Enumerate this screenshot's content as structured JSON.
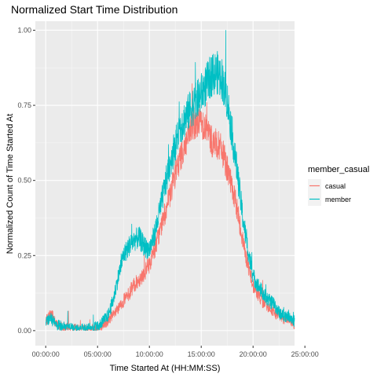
{
  "chart_data": {
    "type": "line",
    "title": "Normalized Start Time Distribution",
    "xlabel": "Time Started At (HH:MM:SS)",
    "ylabel": "Normalized Count of Time Started At",
    "xlim": [
      -1,
      24
    ],
    "ylim": [
      -0.05,
      1.03
    ],
    "x_ticks": [
      0,
      5,
      10,
      15,
      20,
      25
    ],
    "x_tick_labels": [
      "00:00:00",
      "05:00:00",
      "10:00:00",
      "15:00:00",
      "20:00:00",
      "25:00:00"
    ],
    "y_ticks": [
      0,
      0.25,
      0.5,
      0.75,
      1.0
    ],
    "y_tick_labels": [
      "0.00",
      "0.25",
      "0.50",
      "0.75",
      "1.00"
    ],
    "grid": true,
    "background": "#ebebeb",
    "legend": {
      "title": "member_casual",
      "position": "right"
    },
    "x_unit_note": "x values in hours of day",
    "series": [
      {
        "name": "casual",
        "color": "#F8766D",
        "x": [
          0.0,
          0.5,
          1.0,
          2.0,
          3.0,
          4.0,
          5.0,
          5.5,
          6.0,
          6.5,
          7.0,
          7.5,
          8.0,
          8.5,
          9.0,
          9.5,
          10.0,
          10.5,
          11.0,
          11.5,
          12.0,
          12.5,
          13.0,
          13.5,
          14.0,
          14.5,
          15.0,
          15.5,
          16.0,
          16.5,
          17.0,
          17.5,
          18.0,
          18.5,
          19.0,
          19.5,
          20.0,
          20.5,
          21.0,
          21.5,
          22.0,
          22.5,
          23.0,
          23.5,
          24.0
        ],
        "y": [
          0.03,
          0.06,
          0.02,
          0.01,
          0.005,
          0.005,
          0.01,
          0.02,
          0.03,
          0.05,
          0.07,
          0.1,
          0.12,
          0.15,
          0.17,
          0.19,
          0.22,
          0.27,
          0.33,
          0.39,
          0.45,
          0.52,
          0.58,
          0.62,
          0.67,
          0.7,
          0.7,
          0.67,
          0.63,
          0.62,
          0.6,
          0.54,
          0.47,
          0.4,
          0.3,
          0.22,
          0.15,
          0.12,
          0.09,
          0.08,
          0.06,
          0.05,
          0.04,
          0.04,
          0.02
        ],
        "noise": 0.045
      },
      {
        "name": "member",
        "color": "#00BFC4",
        "x": [
          0.0,
          0.5,
          1.0,
          2.0,
          3.0,
          4.0,
          5.0,
          5.5,
          6.0,
          6.5,
          7.0,
          7.5,
          8.0,
          8.5,
          9.0,
          9.5,
          10.0,
          10.5,
          11.0,
          11.5,
          12.0,
          12.5,
          13.0,
          13.5,
          14.0,
          14.5,
          15.0,
          15.5,
          16.0,
          16.5,
          17.0,
          17.5,
          18.0,
          18.5,
          19.0,
          19.5,
          20.0,
          20.5,
          21.0,
          21.5,
          22.0,
          22.5,
          23.0,
          23.5,
          24.0
        ],
        "y": [
          0.03,
          0.04,
          0.02,
          0.01,
          0.005,
          0.005,
          0.015,
          0.03,
          0.05,
          0.1,
          0.18,
          0.25,
          0.28,
          0.3,
          0.31,
          0.28,
          0.27,
          0.32,
          0.4,
          0.48,
          0.56,
          0.62,
          0.68,
          0.71,
          0.74,
          0.76,
          0.79,
          0.82,
          0.85,
          0.86,
          0.84,
          0.77,
          0.65,
          0.52,
          0.38,
          0.27,
          0.18,
          0.15,
          0.12,
          0.1,
          0.09,
          0.06,
          0.05,
          0.05,
          0.03
        ],
        "noise": 0.05
      }
    ]
  }
}
